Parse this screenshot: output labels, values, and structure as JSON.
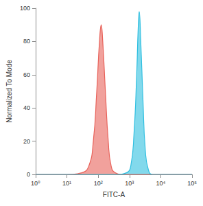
{
  "chart_data": {
    "type": "line",
    "x_label": "FITC-A",
    "y_label": "Normalized To Mode",
    "log": "x",
    "grid": false,
    "xlim": [
      1,
      100000
    ],
    "xticks": [
      {
        "value": 1,
        "label": "10⁰"
      },
      {
        "value": 10,
        "label": "10¹"
      },
      {
        "value": 100,
        "label": "10²"
      },
      {
        "value": 1000,
        "label": "10³"
      },
      {
        "value": 10000,
        "label": "10⁴"
      },
      {
        "value": 100000,
        "label": "10⁵"
      }
    ],
    "ylim": [
      0,
      100
    ],
    "yticks": [
      0,
      20,
      40,
      60,
      80,
      100
    ],
    "series": [
      {
        "color": "#e8625a",
        "x": [
          1,
          10,
          30,
          50,
          70,
          90,
          110,
          125,
          140,
          170,
          210,
          260,
          350,
          600,
          100000
        ],
        "values": [
          0,
          0,
          1,
          5,
          20,
          50,
          80,
          90,
          80,
          50,
          20,
          5,
          1,
          0,
          0
        ]
      },
      {
        "color": "#2fbfe0",
        "x": [
          1,
          400,
          800,
          1100,
          1400,
          1700,
          1900,
          2050,
          2300,
          2700,
          3200,
          4000,
          5500,
          100000
        ],
        "values": [
          0,
          0,
          1,
          5,
          25,
          60,
          88,
          98,
          80,
          45,
          15,
          3,
          0,
          0
        ]
      }
    ]
  }
}
